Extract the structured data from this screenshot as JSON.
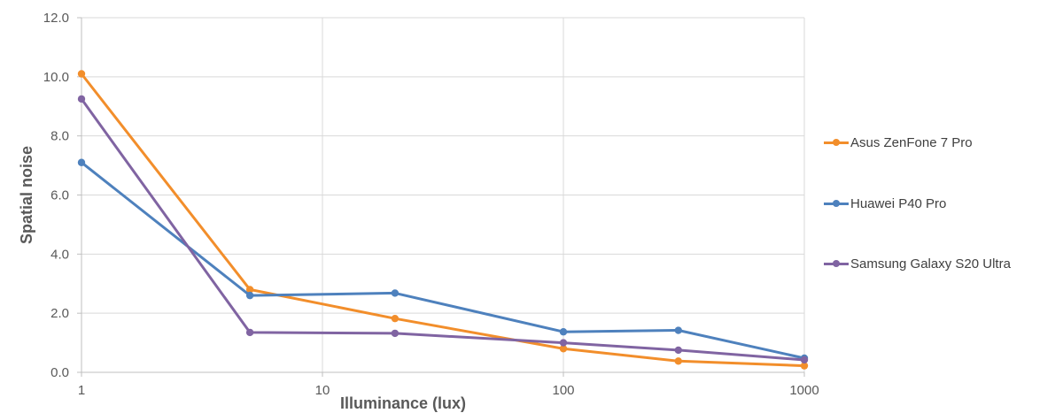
{
  "chart_data": {
    "type": "line",
    "xlabel": "Illuminance (lux)",
    "ylabel": "Spatial noise",
    "x_scale": "log",
    "xlim": [
      1,
      1000
    ],
    "ylim": [
      0,
      12
    ],
    "x_ticks": [
      1,
      10,
      100,
      1000
    ],
    "x_tick_labels": [
      "1",
      "10",
      "100",
      "1000"
    ],
    "y_ticks": [
      0,
      2,
      4,
      6,
      8,
      10,
      12
    ],
    "y_tick_labels": [
      "0.0",
      "2.0",
      "4.0",
      "6.0",
      "8.0",
      "10.0",
      "12.0"
    ],
    "grid": true,
    "legend_position": "right",
    "series": [
      {
        "name": "Asus ZenFone 7 Pro",
        "color": "#F28E2B",
        "x": [
          1,
          5,
          20,
          100,
          300,
          1000
        ],
        "y": [
          10.1,
          2.8,
          1.82,
          0.8,
          0.38,
          0.22
        ]
      },
      {
        "name": "Huawei P40 Pro",
        "color": "#4E81BD",
        "x": [
          1,
          5,
          20,
          100,
          300,
          1000
        ],
        "y": [
          7.1,
          2.6,
          2.68,
          1.37,
          1.42,
          0.48
        ]
      },
      {
        "name": "Samsung Galaxy S20 Ultra",
        "color": "#8064A2",
        "x": [
          1,
          5,
          20,
          100,
          300,
          1000
        ],
        "y": [
          9.25,
          1.35,
          1.32,
          1.0,
          0.75,
          0.42
        ]
      }
    ]
  }
}
